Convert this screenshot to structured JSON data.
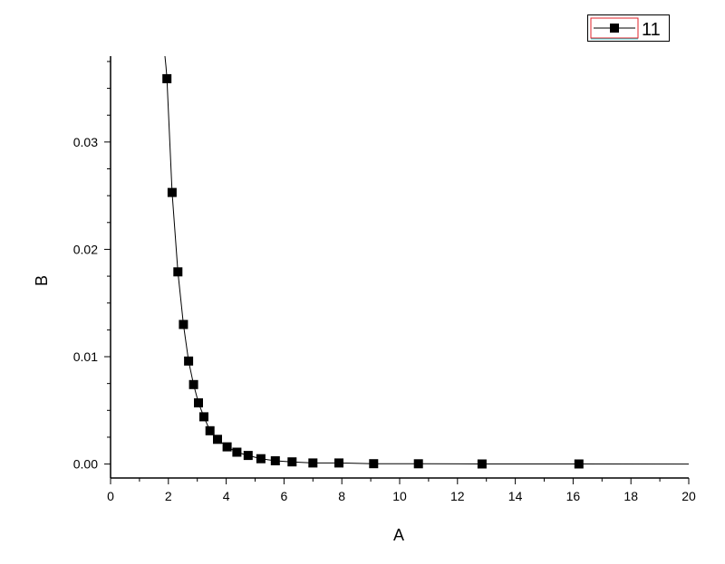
{
  "chart_data": {
    "type": "scatter",
    "title": "",
    "xlabel": "A",
    "ylabel": "B",
    "xlim": [
      0,
      20
    ],
    "ylim": [
      -0.0013,
      0.038
    ],
    "x_ticks": [
      "0",
      "2",
      "4",
      "6",
      "8",
      "10",
      "12",
      "14",
      "16",
      "18",
      "20"
    ],
    "y_ticks": [
      "0.00",
      "0.01",
      "0.02",
      "0.03"
    ],
    "y_tick_values": [
      0.0,
      0.01,
      0.02,
      0.03
    ],
    "grid": false,
    "legend": "top-right",
    "series": [
      {
        "name": "11",
        "marker": "square",
        "color": "#000000",
        "x": [
          1.95,
          2.13,
          2.33,
          2.52,
          2.7,
          2.87,
          3.04,
          3.23,
          3.44,
          3.7,
          4.03,
          4.37,
          4.76,
          5.2,
          5.7,
          6.28,
          7.0,
          7.9,
          9.1,
          10.65,
          12.85,
          16.2
        ],
        "y": [
          0.0359,
          0.0253,
          0.0179,
          0.013,
          0.0096,
          0.0074,
          0.0057,
          0.0044,
          0.0031,
          0.0023,
          0.0016,
          0.0011,
          0.0008,
          0.0005,
          0.0003,
          0.0002,
          0.0001,
          0.0001,
          3e-05,
          2e-05,
          1e-05,
          1e-05
        ]
      }
    ],
    "fit_curve": {
      "x": [
        1.88,
        1.92,
        1.95,
        2.13,
        2.33,
        2.52,
        2.7,
        2.87,
        3.04,
        3.23,
        3.44,
        3.7,
        4.03,
        4.37,
        4.76,
        5.2,
        5.7,
        6.28,
        7.0,
        7.9,
        9.1,
        10.65,
        12.85,
        16.2,
        20.0
      ],
      "y": [
        0.038,
        0.037,
        0.0359,
        0.0253,
        0.0179,
        0.013,
        0.0096,
        0.0074,
        0.0057,
        0.0044,
        0.0031,
        0.0023,
        0.0016,
        0.0011,
        0.0008,
        0.0005,
        0.0003,
        0.0002,
        0.0001,
        0.0001,
        3e-05,
        2e-05,
        1e-05,
        1e-05,
        0.0
      ]
    },
    "colors": {
      "axis": "#000000",
      "legend_frame_accent": "#e0202a",
      "legend_underline": "#38d0d0"
    }
  }
}
